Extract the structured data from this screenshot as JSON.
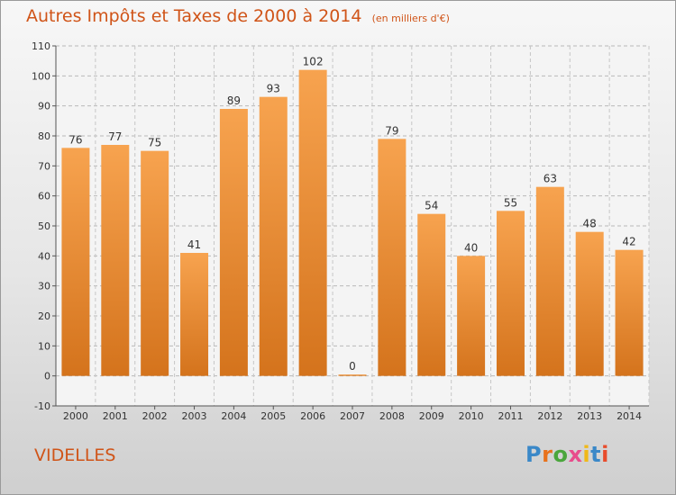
{
  "header": {
    "title": "Autres Impôts et Taxes de 2000 à 2014",
    "unit": "(en milliers d'€)"
  },
  "footer": {
    "place": "VIDELLES",
    "brand": "Proxiti"
  },
  "colors": {
    "title": "#d05418",
    "bar_top": "#f7a34f",
    "bar_bottom": "#d4731c"
  },
  "chart_data": {
    "type": "bar",
    "title": "Autres Impôts et Taxes de 2000 à 2014",
    "subtitle": "(en milliers d'€)",
    "categories": [
      "2000",
      "2001",
      "2002",
      "2003",
      "2004",
      "2005",
      "2006",
      "2007",
      "2008",
      "2009",
      "2010",
      "2011",
      "2012",
      "2013",
      "2014"
    ],
    "values": [
      76,
      77,
      75,
      41,
      89,
      93,
      102,
      0,
      79,
      54,
      40,
      55,
      63,
      48,
      42
    ],
    "ylim": [
      -10,
      110
    ],
    "yticks": [
      -10,
      0,
      10,
      20,
      30,
      40,
      50,
      60,
      70,
      80,
      90,
      100,
      110
    ],
    "grid": true,
    "data_labels": true
  }
}
